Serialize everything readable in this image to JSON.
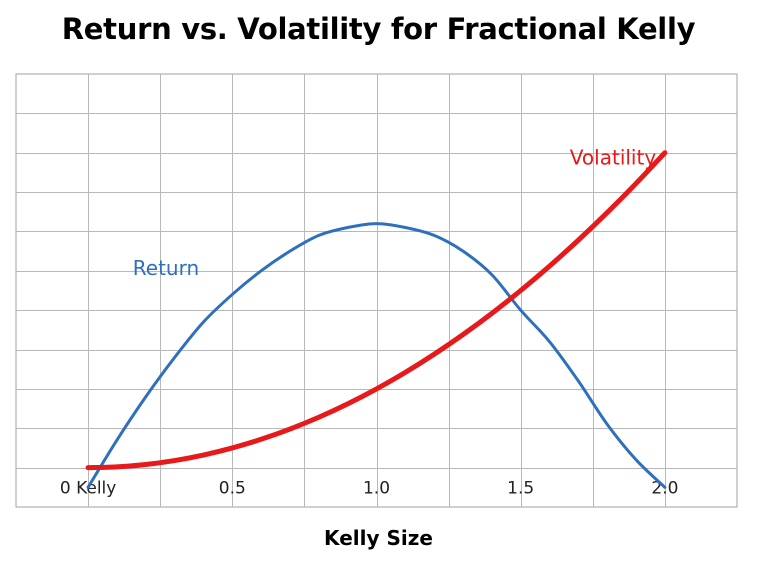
{
  "chart_data": {
    "type": "line",
    "title": "Return vs. Volatility for Fractional Kelly",
    "xlabel": "Kelly Size",
    "ylabel": "",
    "xlim": [
      -0.25,
      2.25
    ],
    "ylim": [
      -0.1,
      1.0
    ],
    "grid": true,
    "x_tick_labels": [
      {
        "value": 0.0,
        "label": "0 Kelly"
      },
      {
        "value": 0.5,
        "label": "0.5"
      },
      {
        "value": 1.0,
        "label": "1.0"
      },
      {
        "value": 1.5,
        "label": "1.5"
      },
      {
        "value": 2.0,
        "label": "2.0"
      }
    ],
    "series": [
      {
        "name": "Return",
        "color": "#2e6fbe",
        "x": [
          0.0,
          0.1,
          0.2,
          0.3,
          0.4,
          0.5,
          0.6,
          0.7,
          0.8,
          0.9,
          1.0,
          1.1,
          1.2,
          1.3,
          1.4,
          1.5,
          1.6,
          1.7,
          1.8,
          1.9,
          2.0
        ],
        "values": [
          -0.05,
          0.07,
          0.18,
          0.28,
          0.37,
          0.44,
          0.5,
          0.55,
          0.59,
          0.61,
          0.62,
          0.61,
          0.59,
          0.55,
          0.49,
          0.4,
          0.32,
          0.22,
          0.11,
          0.02,
          -0.05
        ]
      },
      {
        "name": "Volatility",
        "color": "#e8191a",
        "x": [
          0.0,
          0.1,
          0.2,
          0.3,
          0.4,
          0.5,
          0.6,
          0.7,
          0.8,
          0.9,
          1.0,
          1.1,
          1.2,
          1.3,
          1.4,
          1.5,
          1.6,
          1.7,
          1.8,
          1.9,
          2.0
        ],
        "values": [
          0.0,
          0.002,
          0.008,
          0.018,
          0.032,
          0.05,
          0.072,
          0.098,
          0.128,
          0.162,
          0.2,
          0.242,
          0.288,
          0.338,
          0.392,
          0.45,
          0.512,
          0.578,
          0.648,
          0.722,
          0.8
        ]
      }
    ]
  }
}
